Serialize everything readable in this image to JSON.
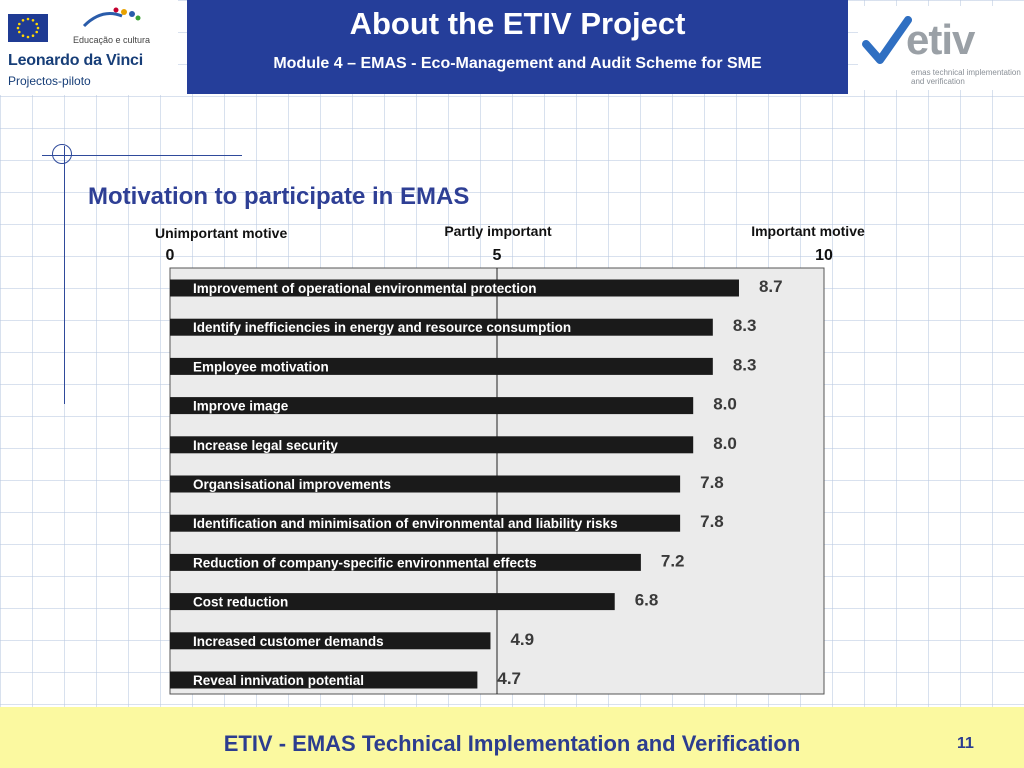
{
  "header": {
    "title": "About the ETIV Project",
    "subtitle": "Module 4 – EMAS - Eco-Management and Audit Scheme for SME"
  },
  "left_logo": {
    "program_text": "Educação e cultura",
    "title": "Leonardo da Vinci",
    "subtitle": "Projectos-piloto"
  },
  "right_logo": {
    "word": "etiv",
    "tagline": "emas technical implementation and verification"
  },
  "slide": {
    "title": "Motivation to participate in EMAS"
  },
  "chart_data": {
    "type": "bar",
    "orientation": "horizontal",
    "title": "Motivation to participate in EMAS",
    "scale_labels": {
      "low": "Unimportant motive",
      "mid": "Partly important",
      "high": "Important motive"
    },
    "xlim": [
      0,
      10
    ],
    "ticks": [
      "0",
      "5",
      "10"
    ],
    "grid": true,
    "categories": [
      "Improvement of operational environmental protection",
      "Identify inefficiencies in energy and resource consumption",
      "Employee motivation",
      "Improve image",
      "Increase legal security",
      "Organsisational improvements",
      "Identification and minimisation of environmental and liability risks",
      "Reduction of company-specific environmental effects",
      "Cost reduction",
      "Increased customer demands",
      "Reveal innivation potential"
    ],
    "values": [
      8.7,
      8.3,
      8.3,
      8.0,
      8.0,
      7.8,
      7.8,
      7.2,
      6.8,
      4.9,
      4.7
    ],
    "value_labels": [
      "8.7",
      "8.3",
      "8.3",
      "8.0",
      "8.0",
      "7.8",
      "7.8",
      "7.2",
      "6.8",
      "4.9",
      "4.7"
    ]
  },
  "footer": {
    "text": "ETIV - EMAS Technical Implementation and Verification",
    "page_number": "11"
  },
  "colors": {
    "header_bg": "#253e9a",
    "title_text": "#2e3f95",
    "bar": "#1a1a1a",
    "plot_bg": "#ebebeb",
    "value_label": "#3a3a3a",
    "footer_bg": "#fbf9a0"
  }
}
